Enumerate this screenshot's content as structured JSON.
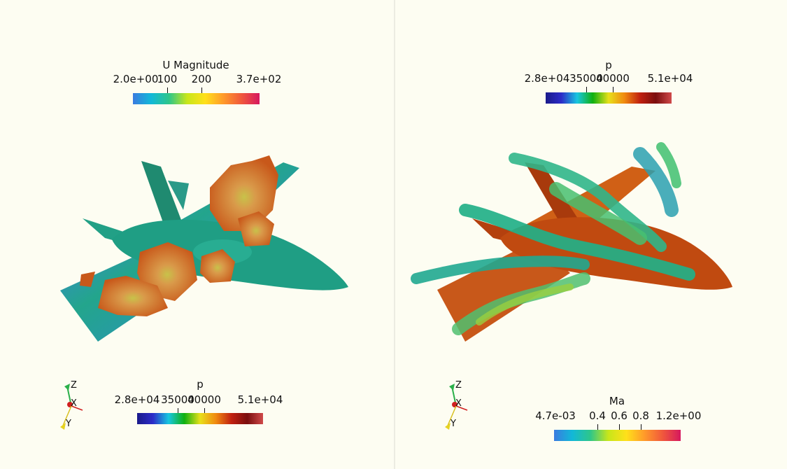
{
  "views": [
    {
      "id": "left",
      "scalar_bars": [
        {
          "title": "U Magnitude",
          "labels": [
            "2.0e+00",
            "100",
            "200",
            "3.7e+02"
          ],
          "colormap": "jet"
        },
        {
          "title": "p",
          "labels": [
            "2.8e+04",
            "35000",
            "40000",
            "5.1e+04"
          ],
          "colormap": "rainbow-dark"
        }
      ],
      "axes": {
        "z": "Z",
        "x": "X",
        "y": "Y"
      }
    },
    {
      "id": "right",
      "scalar_bars": [
        {
          "title": "p",
          "labels": [
            "2.8e+04",
            "35000",
            "40000",
            "5.1e+04"
          ],
          "colormap": "rainbow-dark"
        },
        {
          "title": "Ma",
          "labels": [
            "4.7e-03",
            "0.4",
            "0.6",
            "0.8",
            "1.2e+00"
          ],
          "colormap": "jet"
        }
      ],
      "axes": {
        "z": "Z",
        "x": "X",
        "y": "Y"
      }
    }
  ],
  "colors": {
    "background": "#fdfdf2",
    "jet": [
      "#3a7be0",
      "#12b8d8",
      "#2ec68a",
      "#c8e61a",
      "#ffe01a",
      "#ff9a2a",
      "#f0583c",
      "#d6185e"
    ],
    "rainbow_dark": [
      "#1a1a8a",
      "#2c2cc8",
      "#18c6e0",
      "#10b010",
      "#e8e01a",
      "#f08a10",
      "#c02010",
      "#7a0e0e",
      "#d04a4a"
    ],
    "aircraft_teal": "#1f9e84",
    "aircraft_orange": "#c85410",
    "aircraft_red": "#b8380c"
  }
}
